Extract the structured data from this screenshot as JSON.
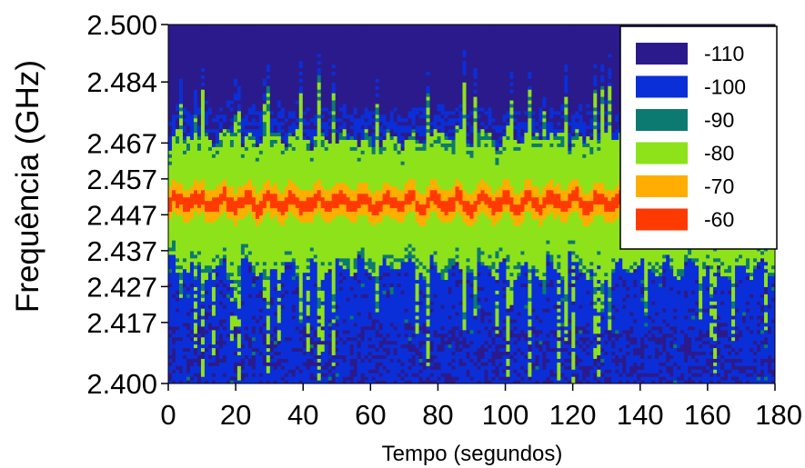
{
  "chart_data": {
    "type": "heatmap",
    "title": "",
    "xlabel": "Tempo (segundos)",
    "ylabel": "Frequência (GHz)",
    "xlim": [
      0,
      180
    ],
    "ylim": [
      2.4,
      2.5
    ],
    "x_ticks": [
      0,
      20,
      40,
      60,
      80,
      100,
      120,
      140,
      160,
      180
    ],
    "y_ticks": [
      "2.400",
      "2.417",
      "2.427",
      "2.437",
      "2.447",
      "2.457",
      "2.467",
      "2.484",
      "2.500"
    ],
    "center_frequency": 2.45,
    "legend": {
      "position": "top-right",
      "title": "",
      "levels": [
        {
          "label": "-110",
          "color": "#2b1a8c"
        },
        {
          "label": "-100",
          "color": "#0a2fd8"
        },
        {
          "label": "-90",
          "color": "#0c7a70"
        },
        {
          "label": "-80",
          "color": "#8ee21a"
        },
        {
          "label": "-70",
          "color": "#ffae00"
        },
        {
          "label": "-60",
          "color": "#ff3a00"
        }
      ]
    },
    "grid": false
  }
}
